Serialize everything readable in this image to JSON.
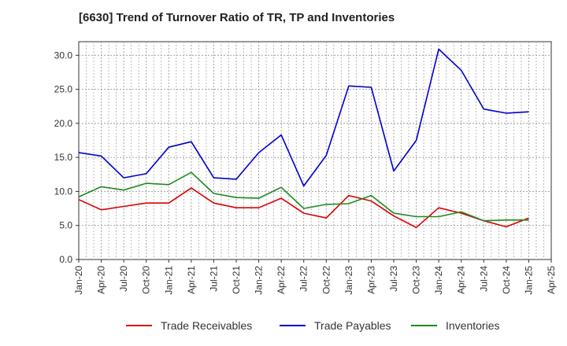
{
  "chart_data": {
    "type": "line",
    "title": "[6630]  Trend of Turnover Ratio of TR, TP and Inventories",
    "xlabel": "",
    "ylabel": "",
    "ylim": [
      0,
      32
    ],
    "yticks": [
      "0.0",
      "5.0",
      "10.0",
      "15.0",
      "20.0",
      "25.0",
      "30.0"
    ],
    "ytick_values": [
      0,
      5,
      10,
      15,
      20,
      25,
      30
    ],
    "xticks": [
      "Jan-20",
      "Apr-20",
      "Jul-20",
      "Oct-20",
      "Jan-21",
      "Apr-21",
      "Jul-21",
      "Oct-21",
      "Jan-22",
      "Apr-22",
      "Jul-22",
      "Oct-22",
      "Jan-23",
      "Apr-23",
      "Jul-23",
      "Oct-23",
      "Jan-24",
      "Apr-24",
      "Jul-24",
      "Oct-24",
      "Jan-25",
      "Apr-25"
    ],
    "x": [
      "Jan-20",
      "Apr-20",
      "Jul-20",
      "Oct-20",
      "Jan-21",
      "Apr-21",
      "Jul-21",
      "Oct-21",
      "Jan-22",
      "Apr-22",
      "Jul-22",
      "Oct-22",
      "Jan-23",
      "Apr-23",
      "Jul-23",
      "Oct-23",
      "Jan-24",
      "Apr-24",
      "Jul-24",
      "Oct-24",
      "Jan-25"
    ],
    "grid": true,
    "legend_position": "bottom",
    "series": [
      {
        "name": "Trade Receivables",
        "color": "#dd0000",
        "values": [
          8.8,
          7.3,
          7.8,
          8.3,
          8.3,
          10.5,
          8.3,
          7.6,
          7.6,
          9.0,
          6.8,
          6.1,
          9.4,
          8.6,
          6.4,
          4.7,
          7.6,
          6.8,
          5.7,
          4.8,
          6.1
        ]
      },
      {
        "name": "Trade Payables",
        "color": "#0000cc",
        "values": [
          15.7,
          15.2,
          12.0,
          12.6,
          16.5,
          17.3,
          12.0,
          11.8,
          15.7,
          18.3,
          10.8,
          15.3,
          25.5,
          25.3,
          13.0,
          17.5,
          30.9,
          27.8,
          22.1,
          21.5,
          21.7
        ]
      },
      {
        "name": "Inventories",
        "color": "#1f8a1f",
        "values": [
          9.2,
          10.7,
          10.2,
          11.2,
          11.0,
          12.8,
          9.7,
          9.1,
          9.0,
          10.6,
          7.5,
          8.1,
          8.2,
          9.4,
          6.8,
          6.3,
          6.3,
          7.0,
          5.7,
          5.8,
          5.8
        ]
      }
    ]
  }
}
